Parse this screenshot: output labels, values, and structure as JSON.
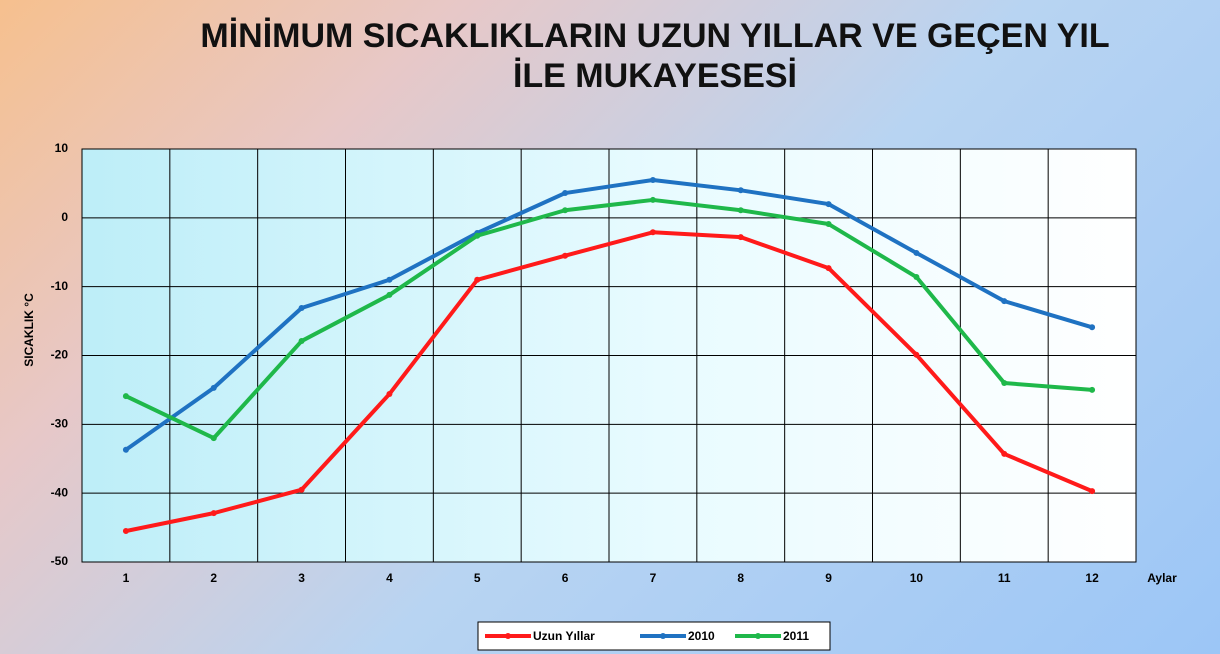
{
  "chart_data": {
    "type": "line",
    "title": "MİNİMUM SICAKLIKLARIN UZUN YILLAR VE GEÇEN YIL İLE MUKAYESESİ",
    "x_label": "Aylar",
    "y_label": "SICAKLIK °C",
    "categories": [
      "1",
      "2",
      "3",
      "4",
      "5",
      "6",
      "7",
      "8",
      "9",
      "10",
      "11",
      "12"
    ],
    "series": [
      {
        "name": "Uzun Yıllar",
        "color": "#ff1a1a",
        "values": [
          -45.5,
          -42.9,
          -39.5,
          -25.6,
          -9.0,
          -5.5,
          -2.1,
          -2.8,
          -7.3,
          -19.9,
          -34.3,
          -39.7
        ]
      },
      {
        "name": "2010",
        "color": "#1f72c2",
        "values": [
          -33.7,
          -24.7,
          -13.1,
          -9.0,
          -2.2,
          3.6,
          5.5,
          4.0,
          2.0,
          -5.1,
          -12.1,
          -15.9
        ]
      },
      {
        "name": "2011",
        "color": "#1fb84a",
        "values": [
          -25.9,
          -32.0,
          -17.9,
          -11.2,
          -2.6,
          1.1,
          2.6,
          1.1,
          -0.9,
          -8.6,
          -24.0,
          -25.0
        ]
      }
    ],
    "ylim": [
      -50,
      10
    ],
    "yticks": [
      -50,
      -40,
      -30,
      -20,
      -10,
      0,
      10
    ],
    "grid": true,
    "legend": "bottom"
  }
}
